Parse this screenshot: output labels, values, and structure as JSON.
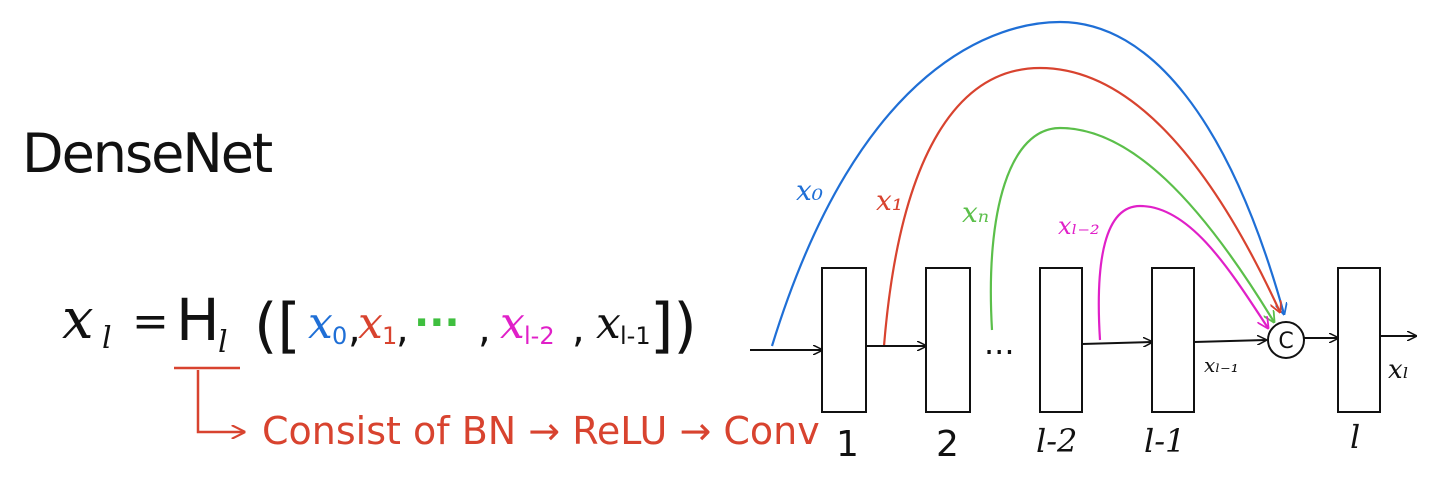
{
  "title": "DenseNet",
  "formula": {
    "lhs": "x",
    "lhs_sub": "l",
    "equals": "=",
    "func": "H",
    "func_sub": "l",
    "open": "([",
    "terms": [
      {
        "base": "x",
        "sub": "0",
        "color": "#1f6fd6"
      },
      {
        "base": "x",
        "sub": "1",
        "color": "#d8432f"
      },
      {
        "base": "···",
        "sub": "",
        "color": "#3fbf3f"
      },
      {
        "base": "x",
        "sub": "l-2",
        "color": "#e020c8"
      },
      {
        "base": "x",
        "sub": "l-1",
        "color": "#111111"
      }
    ],
    "close": "])"
  },
  "annotation": "Consist of  BN → ReLU → Conv",
  "layers": [
    {
      "label": "1"
    },
    {
      "label": "2"
    },
    {
      "label": "l-2"
    },
    {
      "label": "l-1"
    },
    {
      "label": "l"
    }
  ],
  "ellipsis": "...",
  "concat_symbol": "C",
  "edge_labels": {
    "x_l_minus_1": "xₗ₋₁",
    "x_l": "xₗ"
  },
  "skip_connections": [
    {
      "label": "x₀",
      "color": "#1f6fd6"
    },
    {
      "label": "x₁",
      "color": "#d8432f"
    },
    {
      "label": "xₙ",
      "color": "#5bbf4a"
    },
    {
      "label": "xₗ₋₂",
      "color": "#e020c8"
    }
  ],
  "colors": {
    "ink": "#111111",
    "annotation": "#d8432f"
  }
}
